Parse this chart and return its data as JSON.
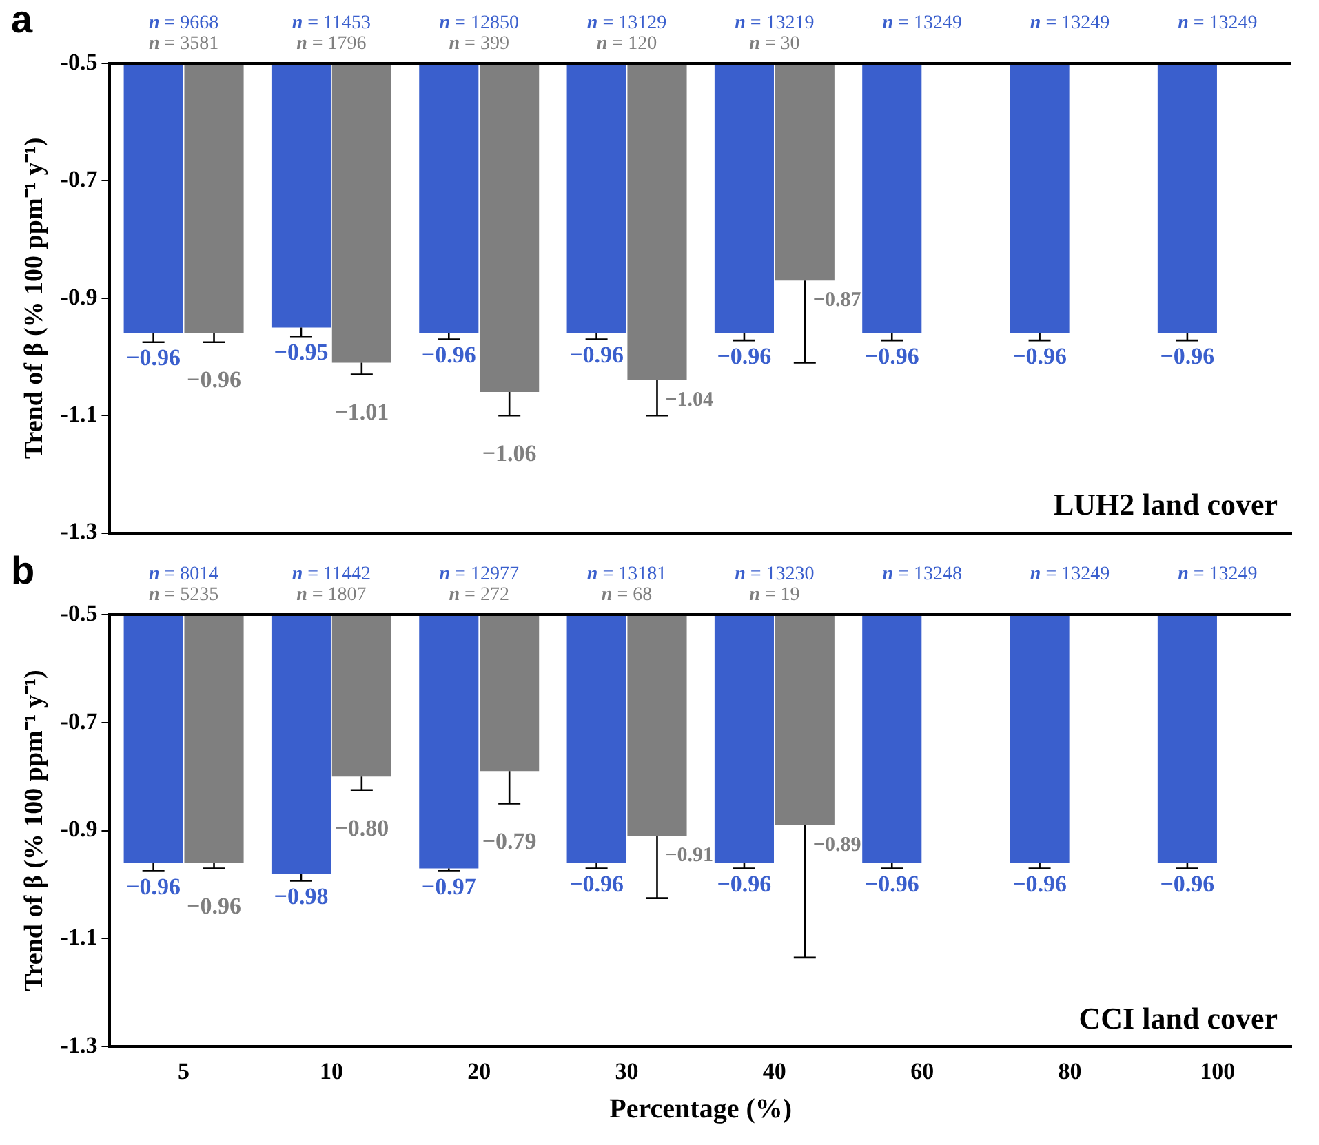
{
  "chart_data": [
    {
      "type": "bar",
      "title": "a",
      "ylabel": "Trend of β (% 100 ppm⁻¹ y⁻¹)",
      "categories": [
        "5",
        "10",
        "20",
        "30",
        "40",
        "60",
        "80",
        "100"
      ],
      "series": [
        {
          "color": "#3a5fcd",
          "values": [
            -0.96,
            -0.95,
            -0.96,
            -0.96,
            -0.96,
            -0.96,
            -0.96,
            -0.96
          ],
          "errors": [
            [
              -0.975,
              -0.96
            ],
            [
              -0.965,
              -0.95
            ],
            [
              -0.97,
              -0.96
            ],
            [
              -0.97,
              -0.96
            ],
            [
              -0.972,
              -0.96
            ],
            [
              -0.972,
              -0.96
            ],
            [
              -0.972,
              -0.96
            ],
            [
              -0.972,
              -0.96
            ]
          ],
          "value_labels": [
            "−0.96",
            "−0.95",
            "−0.96",
            "−0.96",
            "−0.96",
            "−0.96",
            "−0.96",
            "−0.96"
          ]
        },
        {
          "color": "#7f7f7f",
          "values": [
            -0.96,
            -1.01,
            -1.06,
            -1.04,
            -0.87,
            null,
            null,
            null
          ],
          "errors": [
            [
              -0.975,
              -0.96
            ],
            [
              -1.03,
              -1.01
            ],
            [
              -1.1,
              -1.06
            ],
            [
              -1.1,
              -1.04
            ],
            [
              -1.01,
              -0.87
            ],
            null,
            null,
            null
          ],
          "value_labels": [
            "−0.96",
            "−1.01",
            "−1.06",
            "−1.04",
            "−0.87",
            null,
            null,
            null
          ]
        }
      ],
      "ylim": [
        -1.3,
        -0.5
      ],
      "yticks": [
        -1.3,
        -1.1,
        -0.9,
        -0.7,
        -0.5
      ],
      "tick_labels": "y",
      "legend": false,
      "grid": false,
      "annotations": [
        {
          "text": "n = 9668",
          "x": "5"
        },
        {
          "text": "n = 3581",
          "x": "5"
        },
        {
          "text": "n = 11453",
          "x": "10"
        },
        {
          "text": "n = 1796",
          "x": "10"
        },
        {
          "text": "n = 12850",
          "x": "20"
        },
        {
          "text": "n = 399",
          "x": "20"
        },
        {
          "text": "n = 13129",
          "x": "30"
        },
        {
          "text": "n = 120",
          "x": "30"
        },
        {
          "text": "n = 13219",
          "x": "40"
        },
        {
          "text": "n = 30",
          "x": "40"
        },
        {
          "text": "n = 13249",
          "x": "60"
        },
        {
          "text": "n = 13249",
          "x": "80"
        },
        {
          "text": "n = 13249",
          "x": "100"
        },
        "LUH2 land cover"
      ]
    },
    {
      "type": "bar",
      "title": "b",
      "ylabel": "Trend of β (% 100 ppm⁻¹ y⁻¹)",
      "xlabel": "Percentage (%)",
      "categories": [
        "5",
        "10",
        "20",
        "30",
        "40",
        "60",
        "80",
        "100"
      ],
      "series": [
        {
          "color": "#3a5fcd",
          "values": [
            -0.96,
            -0.98,
            -0.97,
            -0.96,
            -0.96,
            -0.96,
            -0.96,
            -0.96
          ],
          "errors": [
            [
              -0.975,
              -0.96
            ],
            [
              -0.993,
              -0.98
            ],
            [
              -0.975,
              -0.97
            ],
            [
              -0.97,
              -0.96
            ],
            [
              -0.97,
              -0.96
            ],
            [
              -0.97,
              -0.96
            ],
            [
              -0.97,
              -0.96
            ],
            [
              -0.97,
              -0.96
            ]
          ],
          "value_labels": [
            "−0.96",
            "−0.98",
            "−0.97",
            "−0.96",
            "−0.96",
            "−0.96",
            "−0.96",
            "−0.96"
          ]
        },
        {
          "color": "#7f7f7f",
          "values": [
            -0.96,
            -0.8,
            -0.79,
            -0.91,
            -0.89,
            null,
            null,
            null
          ],
          "errors": [
            [
              -0.97,
              -0.96
            ],
            [
              -0.825,
              -0.8
            ],
            [
              -0.85,
              -0.79
            ],
            [
              -1.025,
              -0.91
            ],
            [
              -1.135,
              -0.89
            ],
            null,
            null,
            null
          ],
          "value_labels": [
            "−0.96",
            "−0.80",
            "−0.79",
            "−0.91",
            "−0.89",
            null,
            null,
            null
          ]
        }
      ],
      "ylim": [
        -1.3,
        -0.5
      ],
      "yticks": [
        -1.3,
        -1.1,
        -0.9,
        -0.7,
        -0.5
      ],
      "legend": false,
      "grid": false,
      "annotations": [
        {
          "text": "n = 8014",
          "x": "5"
        },
        {
          "text": "n = 5235",
          "x": "5"
        },
        {
          "text": "n = 11442",
          "x": "10"
        },
        {
          "text": "n = 1807",
          "x": "10"
        },
        {
          "text": "n = 12977",
          "x": "20"
        },
        {
          "text": "n = 272",
          "x": "20"
        },
        {
          "text": "n = 13181",
          "x": "30"
        },
        {
          "text": "n = 68",
          "x": "30"
        },
        {
          "text": "n = 13230",
          "x": "40"
        },
        {
          "text": "n = 19",
          "x": "40"
        },
        {
          "text": "n = 13248",
          "x": "60"
        },
        {
          "text": "n = 13249",
          "x": "80"
        },
        {
          "text": "n = 13249",
          "x": "100"
        },
        "CCI land cover"
      ]
    }
  ]
}
